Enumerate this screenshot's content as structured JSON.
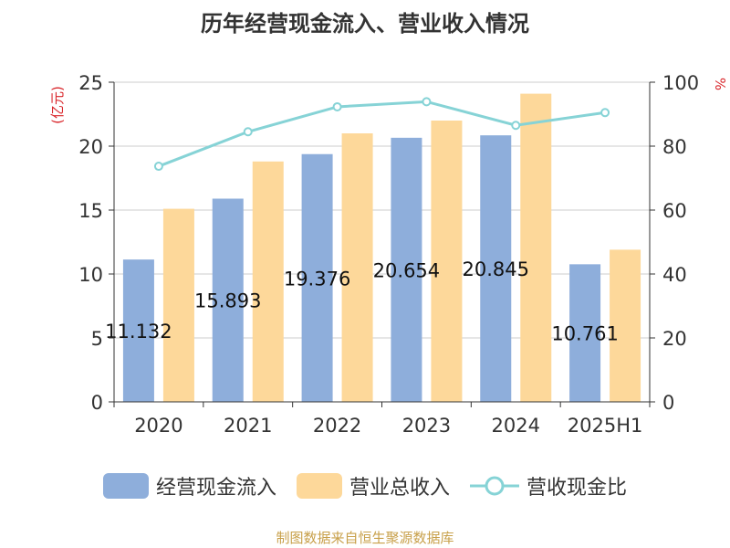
{
  "chart_data": {
    "type": "bar",
    "title": "历年经营现金流入、营业收入情况",
    "categories": [
      "2020",
      "2021",
      "2022",
      "2023",
      "2024",
      "2025H1"
    ],
    "series": [
      {
        "name": "经营现金流入",
        "kind": "bar",
        "axis": "left",
        "color": "#8eaedb",
        "values": [
          11.132,
          15.893,
          19.376,
          20.654,
          20.845,
          10.761
        ],
        "labels": [
          "11.132",
          "15.893",
          "19.376",
          "20.654",
          "20.845",
          "10.761"
        ]
      },
      {
        "name": "营业总收入",
        "kind": "bar",
        "axis": "left",
        "color": "#fdd89a",
        "values": [
          15.1,
          18.8,
          21.0,
          22.0,
          24.1,
          11.9
        ]
      },
      {
        "name": "营收现金比",
        "kind": "line",
        "axis": "right",
        "color": "#86d3d6",
        "values": [
          73.7,
          84.5,
          92.3,
          93.9,
          86.5,
          90.5
        ]
      }
    ],
    "ylabel": "(亿元)",
    "y2label": "%",
    "ylim": [
      0,
      25
    ],
    "y2lim": [
      0,
      100
    ],
    "yticks": [
      "0",
      "5",
      "10",
      "15",
      "20",
      "25"
    ],
    "y2ticks": [
      "0",
      "20",
      "40",
      "60",
      "80",
      "100"
    ],
    "grid": true,
    "legend_position": "bottom"
  },
  "source_text": "制图数据来自恒生聚源数据库"
}
